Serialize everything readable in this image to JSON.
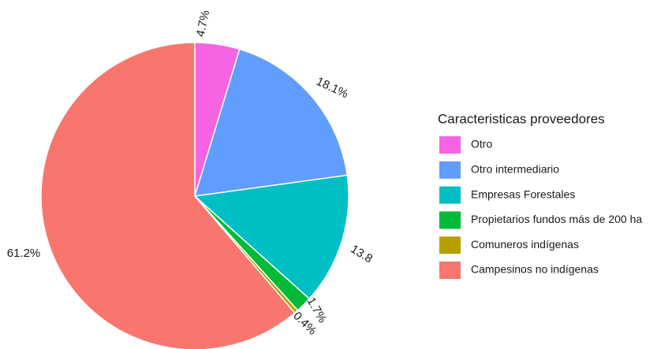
{
  "chart_data": {
    "type": "pie",
    "legend_title": "Caracteristicas proveedores",
    "categories": [
      "Otro",
      "Otro intermediario",
      "Empresas Forestales",
      "Propietarios fundos más de 200 ha",
      "Comuneros indígenas",
      "Campesinos no indígenas"
    ],
    "values": [
      4.7,
      18.1,
      13.8,
      1.7,
      0.4,
      61.2
    ],
    "value_labels": [
      "4.7%",
      "18.1%",
      "13.8",
      "1.7%",
      "0.4%",
      "61.2%"
    ],
    "colors": [
      "#F564E3",
      "#619CFF",
      "#00BFC4",
      "#00BA38",
      "#B79F00",
      "#F8766D"
    ],
    "legend_position": "right"
  }
}
